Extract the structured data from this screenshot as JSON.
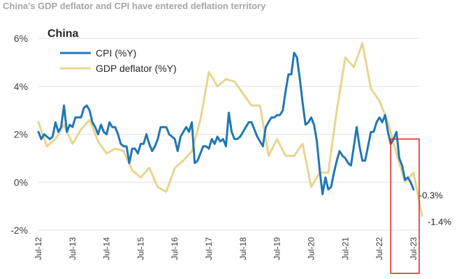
{
  "chart_data": {
    "type": "line",
    "title": "China's GDP deflator and CPI have entered deflation territory",
    "subtitle": "China",
    "xlabel": "",
    "ylabel": "",
    "ylim": [
      -2,
      6
    ],
    "yticks": [
      -2,
      0,
      2,
      4,
      6
    ],
    "ytick_labels": [
      "-2%",
      "0%",
      "2%",
      "4%",
      "6%"
    ],
    "xlim": [
      "2012-07",
      "2023-09"
    ],
    "x_tick_labels": [
      "Jul-12",
      "Jul-13",
      "Jul-14",
      "Jul-15",
      "Jul-16",
      "Jul-17",
      "Jul-18",
      "Jul-19",
      "Jul-20",
      "Jul-21",
      "Jul-22",
      "Jul-23"
    ],
    "grid": true,
    "legend_position": "top-left",
    "series": [
      {
        "name": "CPI (%Y)",
        "color": "#1f77b4",
        "end_label": "-0.3%",
        "points": [
          [
            "2012-07",
            2.1
          ],
          [
            "2012-08",
            1.8
          ],
          [
            "2012-09",
            2.0
          ],
          [
            "2012-10",
            1.9
          ],
          [
            "2012-11",
            1.8
          ],
          [
            "2012-12",
            1.9
          ],
          [
            "2013-01",
            2.5
          ],
          [
            "2013-02",
            2.1
          ],
          [
            "2013-03",
            2.3
          ],
          [
            "2013-04",
            3.2
          ],
          [
            "2013-05",
            2.1
          ],
          [
            "2013-06",
            2.4
          ],
          [
            "2013-07",
            2.3
          ],
          [
            "2013-08",
            2.7
          ],
          [
            "2013-09",
            2.7
          ],
          [
            "2013-10",
            2.7
          ],
          [
            "2013-11",
            3.1
          ],
          [
            "2013-12",
            3.2
          ],
          [
            "2014-01",
            3.0
          ],
          [
            "2014-02",
            2.5
          ],
          [
            "2014-03",
            2.3
          ],
          [
            "2014-04",
            2.0
          ],
          [
            "2014-05",
            2.4
          ],
          [
            "2014-06",
            2.1
          ],
          [
            "2014-07",
            2.0
          ],
          [
            "2014-08",
            2.5
          ],
          [
            "2014-09",
            2.3
          ],
          [
            "2014-10",
            2.3
          ],
          [
            "2014-11",
            2.0
          ],
          [
            "2014-12",
            1.6
          ],
          [
            "2015-01",
            1.5
          ],
          [
            "2015-02",
            1.5
          ],
          [
            "2015-03",
            0.8
          ],
          [
            "2015-04",
            1.4
          ],
          [
            "2015-05",
            1.4
          ],
          [
            "2015-06",
            1.2
          ],
          [
            "2015-07",
            1.6
          ],
          [
            "2015-08",
            1.6
          ],
          [
            "2015-09",
            2.0
          ],
          [
            "2015-10",
            1.6
          ],
          [
            "2015-11",
            1.3
          ],
          [
            "2015-12",
            1.5
          ],
          [
            "2016-01",
            1.8
          ],
          [
            "2016-02",
            2.3
          ],
          [
            "2016-03",
            2.3
          ],
          [
            "2016-04",
            2.3
          ],
          [
            "2016-05",
            2.0
          ],
          [
            "2016-06",
            1.9
          ],
          [
            "2016-07",
            1.8
          ],
          [
            "2016-08",
            1.3
          ],
          [
            "2016-09",
            1.9
          ],
          [
            "2016-10",
            2.1
          ],
          [
            "2016-11",
            2.3
          ],
          [
            "2016-12",
            2.1
          ],
          [
            "2017-01",
            2.5
          ],
          [
            "2017-02",
            0.8
          ],
          [
            "2017-03",
            0.9
          ],
          [
            "2017-04",
            1.2
          ],
          [
            "2017-05",
            1.5
          ],
          [
            "2017-06",
            1.5
          ],
          [
            "2017-07",
            1.4
          ],
          [
            "2017-08",
            1.8
          ],
          [
            "2017-09",
            1.6
          ],
          [
            "2017-10",
            1.9
          ],
          [
            "2017-11",
            1.7
          ],
          [
            "2017-12",
            1.8
          ],
          [
            "2018-01",
            1.5
          ],
          [
            "2018-02",
            2.9
          ],
          [
            "2018-03",
            2.1
          ],
          [
            "2018-04",
            1.8
          ],
          [
            "2018-05",
            1.8
          ],
          [
            "2018-06",
            1.9
          ],
          [
            "2018-07",
            2.1
          ],
          [
            "2018-08",
            2.3
          ],
          [
            "2018-09",
            2.5
          ],
          [
            "2018-10",
            2.5
          ],
          [
            "2018-11",
            2.2
          ],
          [
            "2018-12",
            1.9
          ],
          [
            "2019-01",
            1.7
          ],
          [
            "2019-02",
            1.5
          ],
          [
            "2019-03",
            2.3
          ],
          [
            "2019-04",
            2.5
          ],
          [
            "2019-05",
            2.7
          ],
          [
            "2019-06",
            2.7
          ],
          [
            "2019-07",
            2.8
          ],
          [
            "2019-08",
            2.8
          ],
          [
            "2019-09",
            3.0
          ],
          [
            "2019-10",
            3.8
          ],
          [
            "2019-11",
            4.5
          ],
          [
            "2019-12",
            4.5
          ],
          [
            "2020-01",
            5.4
          ],
          [
            "2020-02",
            5.2
          ],
          [
            "2020-03",
            4.3
          ],
          [
            "2020-04",
            3.3
          ],
          [
            "2020-05",
            2.4
          ],
          [
            "2020-06",
            2.5
          ],
          [
            "2020-07",
            2.7
          ],
          [
            "2020-08",
            2.4
          ],
          [
            "2020-09",
            1.7
          ],
          [
            "2020-10",
            0.5
          ],
          [
            "2020-11",
            -0.5
          ],
          [
            "2020-12",
            0.2
          ],
          [
            "2021-01",
            -0.3
          ],
          [
            "2021-02",
            -0.2
          ],
          [
            "2021-03",
            0.4
          ],
          [
            "2021-04",
            0.9
          ],
          [
            "2021-05",
            1.3
          ],
          [
            "2021-06",
            1.1
          ],
          [
            "2021-07",
            1.0
          ],
          [
            "2021-08",
            0.8
          ],
          [
            "2021-09",
            0.7
          ],
          [
            "2021-10",
            1.5
          ],
          [
            "2021-11",
            2.3
          ],
          [
            "2021-12",
            1.5
          ],
          [
            "2022-01",
            0.9
          ],
          [
            "2022-02",
            0.9
          ],
          [
            "2022-03",
            1.5
          ],
          [
            "2022-04",
            2.1
          ],
          [
            "2022-05",
            2.1
          ],
          [
            "2022-06",
            2.5
          ],
          [
            "2022-07",
            2.7
          ],
          [
            "2022-08",
            2.5
          ],
          [
            "2022-09",
            2.8
          ],
          [
            "2022-10",
            2.1
          ],
          [
            "2022-11",
            1.6
          ],
          [
            "2022-12",
            1.8
          ],
          [
            "2023-01",
            2.1
          ],
          [
            "2023-02",
            1.0
          ],
          [
            "2023-03",
            0.7
          ],
          [
            "2023-04",
            0.1
          ],
          [
            "2023-05",
            0.2
          ],
          [
            "2023-06",
            0.0
          ],
          [
            "2023-07",
            -0.3
          ]
        ]
      },
      {
        "name": "GDP deflator (%Y)",
        "color": "#e8d58e",
        "end_label": "-1.4%",
        "points": [
          [
            "2012-07",
            2.5
          ],
          [
            "2012-10",
            1.5
          ],
          [
            "2013-01",
            1.8
          ],
          [
            "2013-04",
            2.4
          ],
          [
            "2013-07",
            1.6
          ],
          [
            "2013-10",
            2.2
          ],
          [
            "2014-01",
            2.6
          ],
          [
            "2014-04",
            1.7
          ],
          [
            "2014-07",
            1.2
          ],
          [
            "2014-10",
            1.4
          ],
          [
            "2015-01",
            1.3
          ],
          [
            "2015-04",
            0.5
          ],
          [
            "2015-07",
            0.2
          ],
          [
            "2015-10",
            0.6
          ],
          [
            "2016-01",
            -0.2
          ],
          [
            "2016-04",
            -0.4
          ],
          [
            "2016-07",
            0.6
          ],
          [
            "2016-10",
            0.9
          ],
          [
            "2017-01",
            1.3
          ],
          [
            "2017-04",
            2.6
          ],
          [
            "2017-07",
            4.6
          ],
          [
            "2017-10",
            4.0
          ],
          [
            "2018-01",
            4.3
          ],
          [
            "2018-04",
            4.2
          ],
          [
            "2018-07",
            3.7
          ],
          [
            "2018-10",
            3.2
          ],
          [
            "2019-01",
            3.2
          ],
          [
            "2019-04",
            1.1
          ],
          [
            "2019-07",
            1.8
          ],
          [
            "2019-10",
            1.1
          ],
          [
            "2020-01",
            1.1
          ],
          [
            "2020-04",
            1.6
          ],
          [
            "2020-07",
            -0.2
          ],
          [
            "2020-10",
            0.4
          ],
          [
            "2021-01",
            0.4
          ],
          [
            "2021-04",
            3.0
          ],
          [
            "2021-07",
            5.2
          ],
          [
            "2021-10",
            4.8
          ],
          [
            "2022-01",
            5.8
          ],
          [
            "2022-04",
            3.9
          ],
          [
            "2022-07",
            3.4
          ],
          [
            "2022-10",
            2.5
          ],
          [
            "2023-01",
            1.2
          ],
          [
            "2023-04",
            0.0
          ],
          [
            "2023-07",
            0.4
          ],
          [
            "2023-10",
            -1.4
          ]
        ]
      }
    ],
    "annotations": [
      {
        "type": "rectangle",
        "color": "#e31a1c",
        "x_range": [
          "2022-11",
          "2023-09"
        ],
        "y_range": [
          -3.8,
          1.8
        ]
      }
    ]
  }
}
